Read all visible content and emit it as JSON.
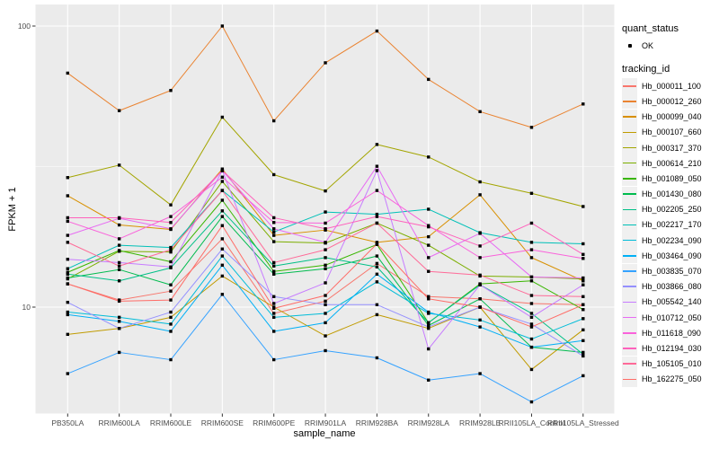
{
  "figure": {
    "x_axis": {
      "label": "sample_name"
    },
    "y_axis": {
      "label": "FPKM + 1",
      "ticks": [
        "100",
        "10"
      ]
    },
    "legend": {
      "quant_status_title": "quant_status",
      "quant_status_value": "OK",
      "tracking_title": "tracking_id"
    }
  },
  "chart_data": {
    "type": "line",
    "title": "",
    "xlabel": "sample_name",
    "ylabel": "FPKM + 1",
    "y_scale": "log10",
    "y_breaks": [
      10,
      100
    ],
    "y_minor_breaks": [
      31.62
    ],
    "ylim": [
      4.2,
      118
    ],
    "grid": "white major and minor on gray panel",
    "panel_bg": "#EBEBEB",
    "marker": "small black point",
    "legend_position": "right",
    "quant_status": "OK",
    "categories": [
      "PB350LA",
      "RRIM600LA",
      "RRIM600LE",
      "RRIM600SE",
      "RRIM600PE",
      "RRIM901LA",
      "RRIM928BA",
      "RRIM928LA",
      "RRIM928LE",
      "RRII105LA_Control",
      "RRII105LA_Stressed"
    ],
    "series": [
      {
        "name": "Hb_000011_100",
        "color": "#F8766D",
        "values": [
          12.1,
          10.6,
          11.4,
          17.5,
          9.5,
          10.5,
          14.3,
          10.9,
          10.7,
          10.3,
          10.2
        ]
      },
      {
        "name": "Hb_000012_260",
        "color": "#EA8331",
        "values": [
          68,
          50,
          59,
          100,
          46,
          74,
          96,
          64.6,
          49.6,
          43.6,
          52.8
        ]
      },
      {
        "name": "Hb_000099_040",
        "color": "#D89000",
        "values": [
          24.9,
          19.6,
          18.9,
          31,
          18,
          18.8,
          17,
          17.8,
          25.1,
          15,
          12.4
        ]
      },
      {
        "name": "Hb_000107_660",
        "color": "#C09B00",
        "values": [
          8,
          8.4,
          9.2,
          12.9,
          10,
          7.9,
          9.4,
          8.4,
          10,
          6,
          8.3
        ]
      },
      {
        "name": "Hb_000317_370",
        "color": "#A3A500",
        "values": [
          28.9,
          32,
          23.1,
          47.4,
          29.6,
          25.9,
          37.9,
          34.2,
          27.9,
          25.4,
          22.8
        ]
      },
      {
        "name": "Hb_000614_210",
        "color": "#7CAE00",
        "values": [
          12.6,
          15.8,
          15.7,
          28,
          17.1,
          16.9,
          19.9,
          16.6,
          12.9,
          12.8,
          12.6
        ]
      },
      {
        "name": "Hb_001089_050",
        "color": "#39B600",
        "values": [
          13.3,
          15.9,
          14.5,
          24,
          13.4,
          14.1,
          16.7,
          8.8,
          12.1,
          12.4,
          9.8
        ]
      },
      {
        "name": "Hb_001430_080",
        "color": "#00BB4E",
        "values": [
          12.7,
          13.6,
          12,
          21,
          13.1,
          13.7,
          15.2,
          8.6,
          10.7,
          7.2,
          6.9
        ]
      },
      {
        "name": "Hb_002205_250",
        "color": "#00C087",
        "values": [
          13.1,
          12.4,
          13.8,
          22,
          14,
          15,
          13.9,
          8.8,
          12,
          9.5,
          6.8
        ]
      },
      {
        "name": "Hb_002217_170",
        "color": "#00C0B8",
        "values": [
          13.7,
          16.6,
          16.3,
          26,
          18.5,
          21.8,
          21.4,
          22.3,
          18.4,
          17,
          16.8
        ]
      },
      {
        "name": "Hb_002234_090",
        "color": "#00BCD8",
        "values": [
          9.6,
          9.2,
          8.7,
          15.2,
          9.2,
          9.5,
          12.3,
          9.5,
          9,
          7.7,
          9.1
        ]
      },
      {
        "name": "Hb_003464_090",
        "color": "#00B0F6",
        "values": [
          9.4,
          8.9,
          8.2,
          14.1,
          8.2,
          8.8,
          13.1,
          9.6,
          8.5,
          7.2,
          7.6
        ]
      },
      {
        "name": "Hb_003835_070",
        "color": "#35A2FF",
        "values": [
          5.8,
          6.9,
          6.5,
          11.1,
          6.5,
          7,
          6.6,
          5.5,
          5.8,
          4.6,
          5.7
        ]
      },
      {
        "name": "Hb_003866_080",
        "color": "#9590FF",
        "values": [
          10.4,
          8.4,
          9.6,
          16.1,
          10.9,
          10.2,
          10.2,
          8.5,
          10,
          8.7,
          6.7
        ]
      },
      {
        "name": "Hb_005542_140",
        "color": "#C77CFF",
        "values": [
          14.8,
          14.4,
          13.9,
          30.6,
          10.3,
          12.2,
          30.6,
          7.1,
          12,
          9.2,
          12
        ]
      },
      {
        "name": "Hb_010712_050",
        "color": "#E76BF3",
        "values": [
          18,
          20.7,
          19,
          30.6,
          19,
          17,
          31.7,
          15,
          18.3,
          12.8,
          12.7
        ]
      },
      {
        "name": "Hb_011618_090",
        "color": "#FA62DB",
        "values": [
          20.2,
          17.5,
          21,
          29,
          20,
          19.9,
          26,
          19.5,
          15,
          16,
          14.9
        ]
      },
      {
        "name": "Hb_012194_030",
        "color": "#FF62BC",
        "values": [
          20.8,
          20.8,
          20,
          30.6,
          20.8,
          19,
          21,
          19.3,
          16.5,
          19.9,
          15.4
        ]
      },
      {
        "name": "Hb_105105_010",
        "color": "#FF6A98",
        "values": [
          17,
          14,
          16,
          26,
          14.4,
          16,
          19.9,
          13.4,
          13,
          11,
          10.9
        ]
      },
      {
        "name": "Hb_162275_050",
        "color": "#FF6C67",
        "values": [
          12.1,
          10.5,
          10.6,
          19.5,
          9.9,
          11,
          16.8,
          10.7,
          10,
          8.5,
          10.2
        ]
      }
    ]
  }
}
